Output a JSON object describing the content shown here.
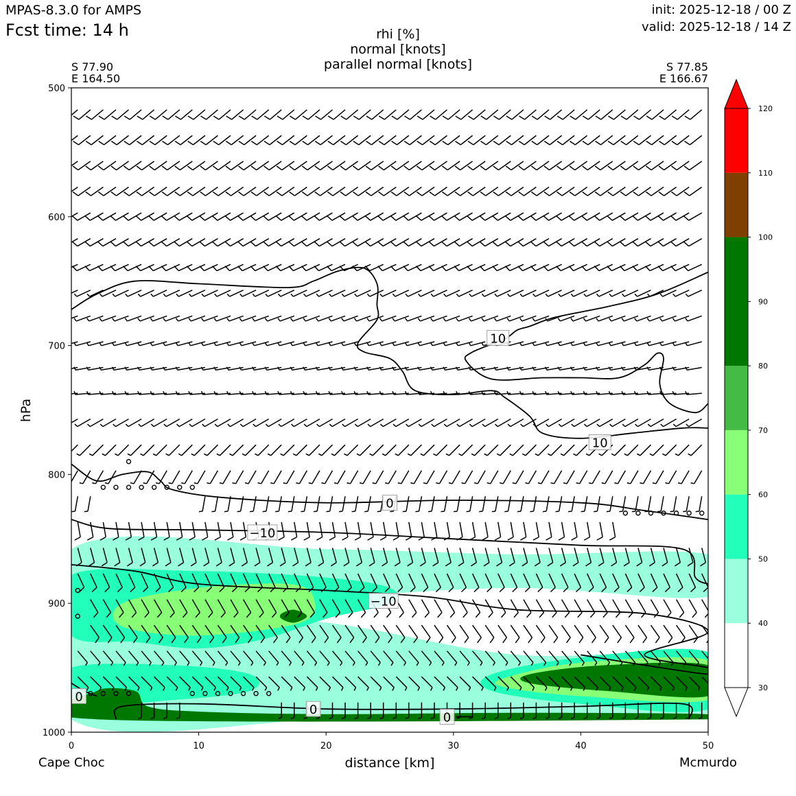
{
  "header": {
    "model": "MPAS-8.3.0 for AMPS",
    "fcst_time": "Fcst time:   14 h",
    "init": "init: 2025-12-18 / 00 Z",
    "valid": "valid: 2025-12-18 / 14 Z"
  },
  "chart_data": {
    "type": "heatmap",
    "title_lines": [
      "rhi [%]",
      "normal [knots]",
      "parallel normal [knots]"
    ],
    "xlabel": "distance [km]",
    "ylabel": "hPa",
    "xlim": [
      0,
      50
    ],
    "ylim": [
      1000,
      500
    ],
    "x_ticks": [
      0,
      10,
      20,
      30,
      40,
      50
    ],
    "y_ticks": [
      500,
      600,
      700,
      800,
      900,
      1000
    ],
    "start_point": {
      "lat": "S 77.90",
      "lon": "E 164.50",
      "name": "Cape Choc"
    },
    "end_point": {
      "lat": "S 77.85",
      "lon": "E 166.67",
      "name": "Mcmurdo"
    },
    "colorbar": {
      "ticks": [
        30,
        40,
        50,
        60,
        70,
        80,
        90,
        100,
        110,
        120
      ],
      "levels": [
        {
          "from": 30,
          "to": 40,
          "color": "#ffffff"
        },
        {
          "from": 40,
          "to": 50,
          "color": "#99ffdd"
        },
        {
          "from": 50,
          "to": 60,
          "color": "#22ffbb"
        },
        {
          "from": 60,
          "to": 70,
          "color": "#88ff77"
        },
        {
          "from": 70,
          "to": 80,
          "color": "#44bb44"
        },
        {
          "from": 80,
          "to": 100,
          "color": "#007700"
        },
        {
          "from": 100,
          "to": 110,
          "color": "#7f3f00"
        },
        {
          "from": 110,
          "to": 120,
          "color": "#ff0000"
        }
      ],
      "extend": "both"
    },
    "rhi_regions": [
      {
        "level": 40,
        "color": "#99ffdd",
        "points": [
          [
            0,
            858
          ],
          [
            20,
            858
          ],
          [
            35,
            862
          ],
          [
            50,
            862
          ],
          [
            50,
            895
          ],
          [
            35,
            888
          ],
          [
            20,
            895
          ],
          [
            5,
            898
          ],
          [
            5,
            905
          ],
          [
            20,
            915
          ],
          [
            35,
            940
          ],
          [
            50,
            940
          ],
          [
            50,
            985
          ],
          [
            35,
            985
          ],
          [
            20,
            990
          ],
          [
            0,
            990
          ]
        ]
      },
      {
        "level": 50,
        "color": "#22ffbb",
        "points": [
          [
            0,
            878
          ],
          [
            10,
            875
          ],
          [
            20,
            880
          ],
          [
            25,
            888
          ],
          [
            25,
            900
          ],
          [
            20,
            912
          ],
          [
            15,
            928
          ],
          [
            10,
            935
          ],
          [
            5,
            930
          ],
          [
            0,
            925
          ]
        ]
      },
      {
        "level": 50,
        "color": "#22ffbb",
        "points": [
          [
            0,
            950
          ],
          [
            8,
            948
          ],
          [
            14,
            955
          ],
          [
            14,
            968
          ],
          [
            8,
            975
          ],
          [
            0,
            978
          ]
        ]
      },
      {
        "level": 50,
        "color": "#22ffbb",
        "points": [
          [
            33,
            955
          ],
          [
            40,
            942
          ],
          [
            50,
            938
          ],
          [
            50,
            982
          ],
          [
            40,
            978
          ],
          [
            33,
            968
          ]
        ]
      },
      {
        "level": 60,
        "color": "#88ff77",
        "points": [
          [
            4,
            900
          ],
          [
            10,
            888
          ],
          [
            17,
            885
          ],
          [
            19,
            895
          ],
          [
            18,
            915
          ],
          [
            10,
            925
          ],
          [
            4,
            918
          ]
        ]
      },
      {
        "level": 60,
        "color": "#88ff77",
        "points": [
          [
            34,
            958
          ],
          [
            40,
            946
          ],
          [
            50,
            944
          ],
          [
            50,
            975
          ],
          [
            40,
            972
          ],
          [
            34,
            965
          ]
        ]
      },
      {
        "level": 80,
        "color": "#007700",
        "points": [
          [
            36,
            955
          ],
          [
            42,
            948
          ],
          [
            50,
            948
          ],
          [
            50,
            972
          ],
          [
            42,
            968
          ],
          [
            36,
            962
          ]
        ]
      },
      {
        "level": 80,
        "color": "#007700",
        "points": [
          [
            16.5,
            908
          ],
          [
            17.5,
            905
          ],
          [
            18.5,
            910
          ],
          [
            17.5,
            915
          ],
          [
            16.5,
            912
          ]
        ]
      },
      {
        "level": 80,
        "color": "#007700",
        "points": [
          [
            2,
            968
          ],
          [
            5,
            968
          ],
          [
            6,
            980
          ],
          [
            10,
            984
          ],
          [
            20,
            986
          ],
          [
            35,
            985
          ],
          [
            50,
            986
          ],
          [
            50,
            990
          ],
          [
            2,
            990
          ]
        ]
      }
    ],
    "contours": [
      {
        "label": "10",
        "label_at": [
          33.5,
          694
        ],
        "points": [
          [
            0,
            672
          ],
          [
            2,
            660
          ],
          [
            5,
            650
          ],
          [
            10,
            652
          ],
          [
            17,
            655
          ],
          [
            19,
            650
          ],
          [
            21,
            642
          ],
          [
            23,
            640
          ],
          [
            24,
            652
          ],
          [
            24,
            668
          ],
          [
            24,
            680
          ],
          [
            22.5,
            698
          ],
          [
            23,
            705
          ],
          [
            25,
            710
          ],
          [
            26,
            720
          ],
          [
            27,
            735
          ],
          [
            30,
            738
          ],
          [
            33,
            735
          ],
          [
            34,
            740
          ],
          [
            36,
            755
          ],
          [
            37,
            768
          ],
          [
            40,
            772
          ],
          [
            44,
            768
          ],
          [
            48,
            764
          ],
          [
            50,
            764
          ]
        ]
      },
      {
        "label": "10",
        "label_at": [
          41.5,
          775
        ],
        "points": [
          [
            50,
            643
          ],
          [
            46,
            660
          ],
          [
            42,
            670
          ],
          [
            38,
            678
          ],
          [
            36,
            685
          ],
          [
            35,
            688
          ],
          [
            34,
            695
          ],
          [
            31.5,
            705
          ],
          [
            31,
            712
          ],
          [
            33,
            726
          ],
          [
            37,
            725
          ],
          [
            40,
            725
          ],
          [
            43,
            725
          ],
          [
            45,
            715
          ],
          [
            46,
            706
          ],
          [
            46.5,
            710
          ],
          [
            46.2,
            730
          ],
          [
            47,
            745
          ],
          [
            49,
            752
          ],
          [
            50,
            745
          ]
        ]
      },
      {
        "label": "0",
        "label_at": [
          25,
          822
        ],
        "points": [
          [
            0,
            792
          ],
          [
            2,
            805
          ],
          [
            4,
            800
          ],
          [
            6,
            798
          ],
          [
            7,
            805
          ],
          [
            8,
            812
          ],
          [
            12,
            818
          ],
          [
            20,
            822
          ],
          [
            30,
            820
          ],
          [
            40,
            822
          ],
          [
            45,
            828
          ],
          [
            50,
            835
          ]
        ]
      },
      {
        "label": "-10",
        "label_at": [
          15,
          845
        ],
        "points": [
          [
            0,
            835
          ],
          [
            3,
            842
          ],
          [
            10,
            843
          ],
          [
            20,
            845
          ],
          [
            30,
            850
          ],
          [
            40,
            855
          ],
          [
            48,
            858
          ],
          [
            49,
            880
          ],
          [
            50,
            885
          ]
        ]
      },
      {
        "label": "-10",
        "label_at": [
          24.5,
          898
        ],
        "points": [
          [
            0,
            870
          ],
          [
            5,
            875
          ],
          [
            10,
            885
          ],
          [
            20,
            890
          ],
          [
            28,
            895
          ],
          [
            35,
            905
          ],
          [
            45,
            908
          ],
          [
            50,
            922
          ],
          [
            45,
            940
          ],
          [
            50,
            950
          ],
          [
            50,
            955
          ],
          [
            45,
            948
          ],
          [
            40,
            940
          ]
        ]
      },
      {
        "label": "0",
        "label_at": [
          19,
          982
        ],
        "points": [
          [
            3.5,
            990
          ],
          [
            4,
            980
          ],
          [
            10,
            978
          ],
          [
            20,
            982
          ],
          [
            30,
            982
          ],
          [
            40,
            980
          ],
          [
            48,
            978
          ],
          [
            48.5,
            990
          ]
        ]
      },
      {
        "label": "0",
        "label_at": [
          0.6,
          972
        ],
        "points": [
          [
            0,
            962
          ],
          [
            1,
            968
          ],
          [
            2,
            972
          ]
        ]
      },
      {
        "label": "0",
        "label_at": [
          29.5,
          988
        ],
        "points": [
          [
            30.2,
            988
          ],
          [
            31.5,
            988
          ]
        ]
      }
    ],
    "wind_layers": [
      {
        "p": 517,
        "dir": 230,
        "speed": 12
      },
      {
        "p": 537,
        "dir": 232,
        "speed": 13
      },
      {
        "p": 557,
        "dir": 235,
        "speed": 12
      },
      {
        "p": 577,
        "dir": 235,
        "speed": 11
      },
      {
        "p": 597,
        "dir": 240,
        "speed": 11
      },
      {
        "p": 617,
        "dir": 240,
        "speed": 10
      },
      {
        "p": 637,
        "dir": 245,
        "speed": 10
      },
      {
        "p": 657,
        "dir": 245,
        "speed": 9
      },
      {
        "p": 677,
        "dir": 250,
        "speed": 9
      },
      {
        "p": 697,
        "dir": 255,
        "speed": 8
      },
      {
        "p": 717,
        "dir": 260,
        "speed": 8
      },
      {
        "p": 737,
        "dir": 265,
        "speed": 7
      },
      {
        "p": 757,
        "dir": 240,
        "speed": 7
      },
      {
        "p": 777,
        "dir": 225,
        "speed": 8
      },
      {
        "p": 797,
        "dir": 210,
        "speed": 9
      },
      {
        "p": 817,
        "dir": 190,
        "speed": 9
      },
      {
        "p": 837,
        "dir": 170,
        "speed": 10
      },
      {
        "p": 857,
        "dir": 165,
        "speed": 10
      },
      {
        "p": 877,
        "dir": 155,
        "speed": 10
      },
      {
        "p": 897,
        "dir": 150,
        "speed": 11
      },
      {
        "p": 917,
        "dir": 145,
        "speed": 10
      },
      {
        "p": 937,
        "dir": 140,
        "speed": 9
      },
      {
        "p": 957,
        "dir": 135,
        "speed": 9
      },
      {
        "p": 977,
        "dir": 180,
        "speed": 6
      }
    ],
    "calm_points": [
      [
        2.5,
        810
      ],
      [
        3.5,
        810
      ],
      [
        4.5,
        810
      ],
      [
        5.5,
        810
      ],
      [
        6.5,
        810
      ],
      [
        7.5,
        810
      ],
      [
        8.5,
        810
      ],
      [
        9.5,
        810
      ],
      [
        4.5,
        790
      ],
      [
        43.5,
        830
      ],
      [
        44.5,
        830
      ],
      [
        45.5,
        830
      ],
      [
        46.5,
        830
      ],
      [
        47.5,
        830
      ],
      [
        48.5,
        830
      ],
      [
        49.5,
        830
      ],
      [
        0.5,
        890
      ],
      [
        0.5,
        910
      ],
      [
        0.5,
        970
      ],
      [
        1.5,
        970
      ],
      [
        2.5,
        970
      ],
      [
        3.5,
        970
      ],
      [
        4.5,
        970
      ],
      [
        9.5,
        970
      ],
      [
        10.5,
        970
      ],
      [
        11.5,
        970
      ],
      [
        12.5,
        970
      ],
      [
        13.5,
        970
      ],
      [
        14.5,
        970
      ],
      [
        15.5,
        970
      ]
    ]
  }
}
